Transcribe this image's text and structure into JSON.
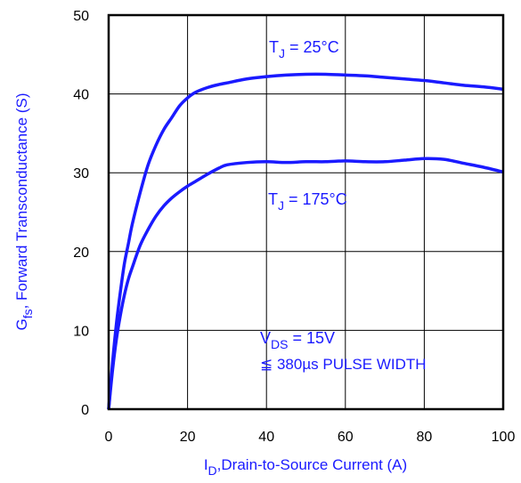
{
  "chart_data": {
    "type": "line",
    "xlabel": "I",
    "xlabel_sub": "D",
    "xlabel_rest": ",Drain-to-Source Current (A)",
    "ylabel": "G",
    "ylabel_sub": "fs",
    "ylabel_rest": ", Forward Transconductance (S)",
    "xlim": [
      0,
      100
    ],
    "ylim": [
      0,
      50
    ],
    "xticks": [
      0,
      20,
      40,
      60,
      80,
      100
    ],
    "yticks": [
      0,
      10,
      20,
      30,
      40,
      50
    ],
    "grid": true,
    "series": [
      {
        "name": "T_J = 25°C",
        "label_main": "T",
        "label_sub": "J",
        "label_rest": " = 25°C",
        "color": "#1a1aff",
        "x": [
          0,
          1,
          2,
          3,
          4,
          5,
          6,
          8,
          10,
          12,
          14,
          16,
          18,
          20,
          22,
          25,
          28,
          30,
          35,
          40,
          45,
          50,
          55,
          60,
          65,
          70,
          75,
          80,
          85,
          90,
          95,
          100
        ],
        "y": [
          0,
          6,
          11,
          15,
          18.5,
          21,
          23.5,
          27.5,
          31,
          33.5,
          35.5,
          37,
          38.5,
          39.5,
          40.2,
          40.8,
          41.2,
          41.4,
          41.9,
          42.2,
          42.4,
          42.5,
          42.5,
          42.4,
          42.3,
          42.1,
          41.9,
          41.7,
          41.4,
          41.1,
          40.9,
          40.6
        ]
      },
      {
        "name": "T_J = 175°C",
        "label_main": "T",
        "label_sub": "J",
        "label_rest": " = 175°C",
        "color": "#1a1aff",
        "x": [
          0,
          1,
          2,
          3,
          4,
          5,
          6,
          8,
          10,
          12,
          14,
          16,
          18,
          20,
          22,
          25,
          28,
          30,
          35,
          40,
          45,
          50,
          55,
          60,
          65,
          70,
          75,
          80,
          85,
          90,
          95,
          100
        ],
        "y": [
          0,
          5,
          9,
          12,
          14.5,
          16.5,
          18,
          20.8,
          22.8,
          24.5,
          25.8,
          26.8,
          27.6,
          28.3,
          28.9,
          29.8,
          30.6,
          31.0,
          31.3,
          31.4,
          31.3,
          31.4,
          31.4,
          31.5,
          31.4,
          31.4,
          31.6,
          31.8,
          31.7,
          31.2,
          30.7,
          30.1
        ]
      }
    ],
    "annotations": {
      "vds_main": "V",
      "vds_sub": "DS",
      "vds_rest": " = 15V",
      "pulse_symbol": "≦",
      "pulse_text": " 380µs PULSE WIDTH"
    }
  }
}
